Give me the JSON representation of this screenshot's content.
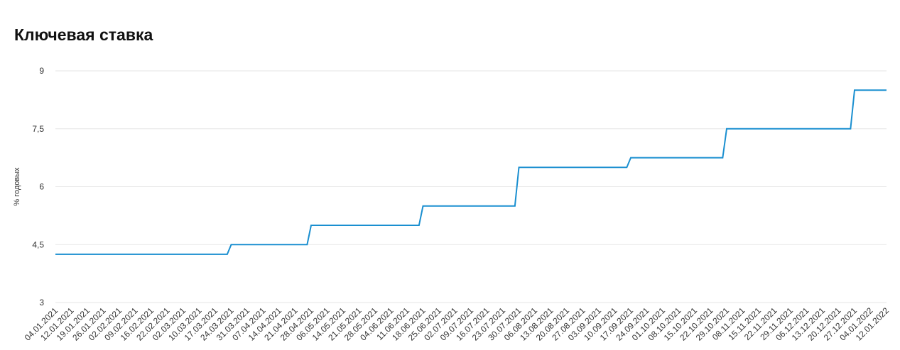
{
  "chart_data": {
    "type": "line",
    "title": "Ключевая ставка",
    "ylabel": "% годовых",
    "xlabel": "",
    "ylim": [
      3,
      9
    ],
    "yticks": [
      3,
      4.5,
      6,
      7.5,
      9
    ],
    "ytick_labels": [
      "3",
      "4,5",
      "6",
      "7,5",
      "9"
    ],
    "grid": true,
    "line_color": "#1a8fd0",
    "categories": [
      "04.01.2021",
      "12.01.2021",
      "19.01.2021",
      "26.01.2021",
      "02.02.2021",
      "09.02.2021",
      "16.02.2021",
      "22.02.2021",
      "02.03.2021",
      "10.03.2021",
      "17.03.2021",
      "24.03.2021",
      "31.03.2021",
      "07.04.2021",
      "14.04.2021",
      "21.04.2021",
      "28.04.2021",
      "06.05.2021",
      "14.05.2021",
      "21.05.2021",
      "28.05.2021",
      "04.06.2021",
      "11.06.2021",
      "18.06.2021",
      "25.06.2021",
      "02.07.2021",
      "09.07.2021",
      "16.07.2021",
      "23.07.2021",
      "30.07.2021",
      "06.08.2021",
      "13.08.2021",
      "20.08.2021",
      "27.08.2021",
      "03.09.2021",
      "10.09.2021",
      "17.09.2021",
      "24.09.2021",
      "01.10.2021",
      "08.10.2021",
      "15.10.2021",
      "22.10.2021",
      "29.10.2021",
      "08.11.2021",
      "15.11.2021",
      "22.11.2021",
      "29.11.2021",
      "06.12.2021",
      "13.12.2021",
      "20.12.2021",
      "27.12.2021",
      "04.01.2022",
      "12.01.2022"
    ],
    "series": [
      {
        "name": "",
        "values": [
          4.25,
          4.25,
          4.25,
          4.25,
          4.25,
          4.25,
          4.25,
          4.25,
          4.25,
          4.25,
          4.25,
          4.5,
          4.5,
          4.5,
          4.5,
          4.5,
          5,
          5,
          5,
          5,
          5,
          5,
          5,
          5.5,
          5.5,
          5.5,
          5.5,
          5.5,
          5.5,
          6.5,
          6.5,
          6.5,
          6.5,
          6.5,
          6.5,
          6.5,
          6.75,
          6.75,
          6.75,
          6.75,
          6.75,
          6.75,
          7.5,
          7.5,
          7.5,
          7.5,
          7.5,
          7.5,
          7.5,
          7.5,
          8.5,
          8.5,
          8.5
        ]
      }
    ]
  }
}
